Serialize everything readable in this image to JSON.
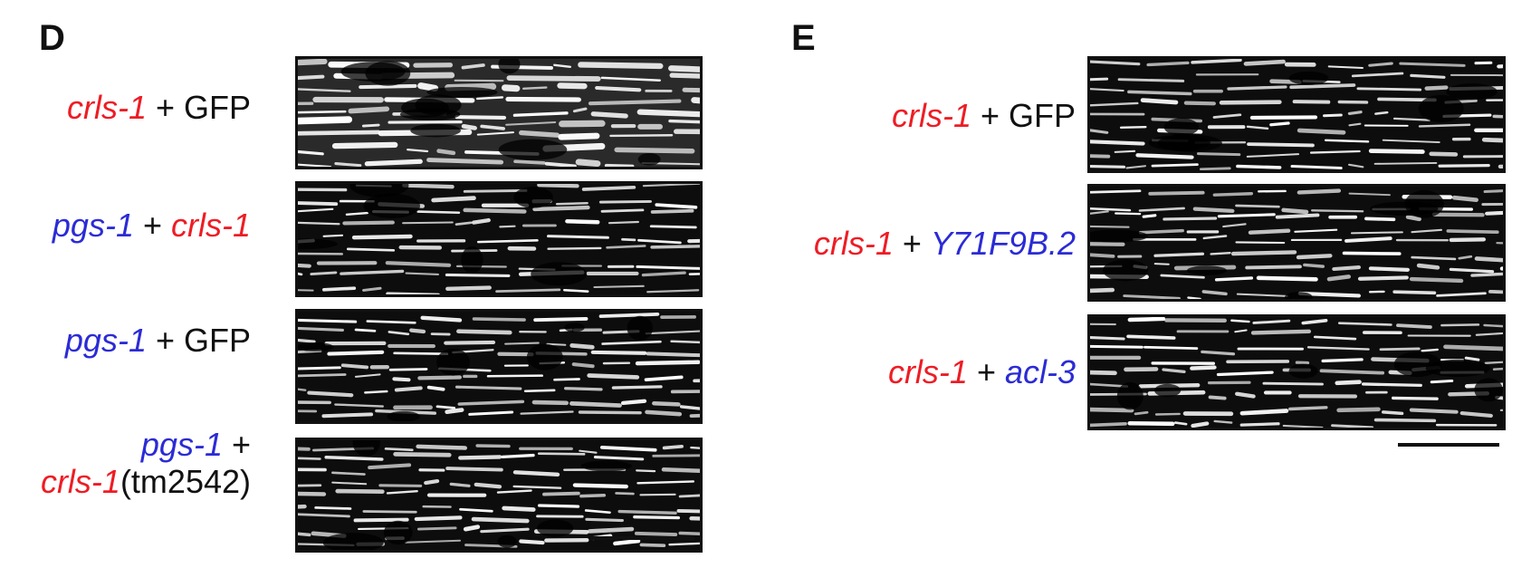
{
  "panels": [
    {
      "letter": "D",
      "rows": [
        {
          "parts": [
            {
              "text": "crls-1",
              "color": "red"
            },
            {
              "text": " + GFP",
              "color": "black"
            }
          ]
        },
        {
          "parts": [
            {
              "text": "pgs-1",
              "color": "blue"
            },
            {
              "text": " + ",
              "color": "black"
            },
            {
              "text": "crls-1",
              "color": "red"
            }
          ]
        },
        {
          "parts": [
            {
              "text": "pgs-1",
              "color": "blue"
            },
            {
              "text": " + GFP",
              "color": "black"
            }
          ]
        },
        {
          "line1": [
            {
              "text": "pgs-1",
              "color": "blue"
            },
            {
              "text": " +",
              "color": "black"
            }
          ],
          "line2": [
            {
              "text": "crls-1",
              "color": "red"
            },
            {
              "text": "(tm2542)",
              "color": "black"
            }
          ]
        }
      ]
    },
    {
      "letter": "E",
      "rows": [
        {
          "parts": [
            {
              "text": "crls-1",
              "color": "red"
            },
            {
              "text": " + GFP",
              "color": "black"
            }
          ]
        },
        {
          "parts": [
            {
              "text": "crls-1",
              "color": "red"
            },
            {
              "text": " + ",
              "color": "black"
            },
            {
              "text": "Y71F9B.2",
              "color": "blue"
            }
          ]
        },
        {
          "parts": [
            {
              "text": "crls-1",
              "color": "red"
            },
            {
              "text": " + ",
              "color": "black"
            },
            {
              "text": "acl-3",
              "color": "blue"
            }
          ]
        }
      ]
    }
  ],
  "colors": {
    "red": "#ee1c24",
    "blue": "#2b2bd6",
    "black": "#111111"
  }
}
